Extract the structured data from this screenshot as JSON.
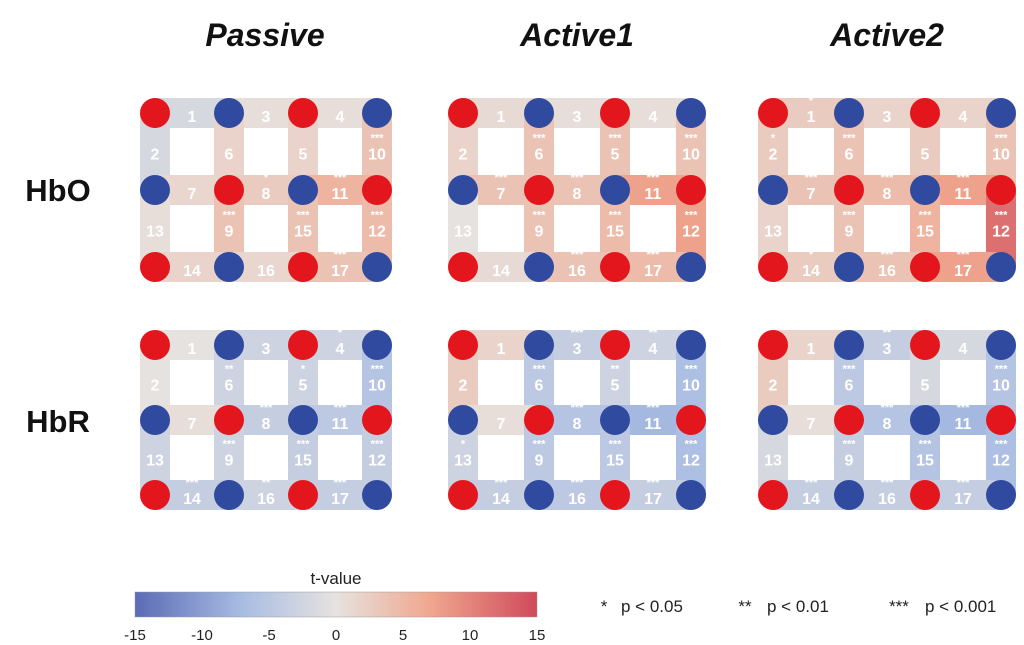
{
  "columns": [
    "Passive",
    "Active1",
    "Active2"
  ],
  "rows": [
    "HbO",
    "HbR"
  ],
  "optode_layout": [
    [
      "source",
      "detector",
      "source",
      "detector"
    ],
    [
      "detector",
      "source",
      "detector",
      "source"
    ],
    [
      "source",
      "detector",
      "source",
      "detector"
    ]
  ],
  "colors": {
    "source": "#e3161d",
    "detector": "#2f4a9e",
    "cmap": [
      "#5b6bb5",
      "#a9bde3",
      "#e6e2df",
      "#f0a890",
      "#cf4a5b"
    ]
  },
  "channels": {
    "HbO": {
      "Passive": [
        {
          "id": 1,
          "t": -2,
          "sig": ""
        },
        {
          "id": 2,
          "t": -2,
          "sig": ""
        },
        {
          "id": 3,
          "t": 0.5,
          "sig": ""
        },
        {
          "id": 4,
          "t": 0.5,
          "sig": ""
        },
        {
          "id": 5,
          "t": 2,
          "sig": ""
        },
        {
          "id": 6,
          "t": 2,
          "sig": ""
        },
        {
          "id": 7,
          "t": 1.5,
          "sig": ""
        },
        {
          "id": 8,
          "t": 3,
          "sig": "*"
        },
        {
          "id": 9,
          "t": 4,
          "sig": "***"
        },
        {
          "id": 10,
          "t": 4,
          "sig": "***"
        },
        {
          "id": 11,
          "t": 6,
          "sig": "***"
        },
        {
          "id": 12,
          "t": 5,
          "sig": "***"
        },
        {
          "id": 13,
          "t": 0.5,
          "sig": ""
        },
        {
          "id": 14,
          "t": 2,
          "sig": ""
        },
        {
          "id": 15,
          "t": 4,
          "sig": "***"
        },
        {
          "id": 16,
          "t": 1.5,
          "sig": ""
        },
        {
          "id": 17,
          "t": 4,
          "sig": "***"
        }
      ],
      "Active1": [
        {
          "id": 1,
          "t": 1,
          "sig": ""
        },
        {
          "id": 2,
          "t": 2,
          "sig": ""
        },
        {
          "id": 3,
          "t": 0.5,
          "sig": ""
        },
        {
          "id": 4,
          "t": 0.5,
          "sig": ""
        },
        {
          "id": 5,
          "t": 4,
          "sig": "***"
        },
        {
          "id": 6,
          "t": 4,
          "sig": "***"
        },
        {
          "id": 7,
          "t": 4,
          "sig": "***"
        },
        {
          "id": 8,
          "t": 4,
          "sig": "***"
        },
        {
          "id": 9,
          "t": 4,
          "sig": "***"
        },
        {
          "id": 10,
          "t": 4,
          "sig": "***"
        },
        {
          "id": 11,
          "t": 8,
          "sig": "***"
        },
        {
          "id": 12,
          "t": 8,
          "sig": "***"
        },
        {
          "id": 13,
          "t": 0,
          "sig": ""
        },
        {
          "id": 14,
          "t": 1,
          "sig": ""
        },
        {
          "id": 15,
          "t": 5,
          "sig": "***"
        },
        {
          "id": 16,
          "t": 4,
          "sig": "***"
        },
        {
          "id": 17,
          "t": 5,
          "sig": "***"
        }
      ],
      "Active2": [
        {
          "id": 1,
          "t": 3,
          "sig": "*"
        },
        {
          "id": 2,
          "t": 3,
          "sig": "*"
        },
        {
          "id": 3,
          "t": 2,
          "sig": ""
        },
        {
          "id": 4,
          "t": 2,
          "sig": ""
        },
        {
          "id": 5,
          "t": 3,
          "sig": ""
        },
        {
          "id": 6,
          "t": 4,
          "sig": "***"
        },
        {
          "id": 7,
          "t": 4,
          "sig": "***"
        },
        {
          "id": 8,
          "t": 5,
          "sig": "***"
        },
        {
          "id": 9,
          "t": 4,
          "sig": "***"
        },
        {
          "id": 10,
          "t": 4,
          "sig": "***"
        },
        {
          "id": 11,
          "t": 8,
          "sig": "***"
        },
        {
          "id": 12,
          "t": 12,
          "sig": "***"
        },
        {
          "id": 13,
          "t": 2,
          "sig": ""
        },
        {
          "id": 14,
          "t": 3,
          "sig": "*"
        },
        {
          "id": 15,
          "t": 6,
          "sig": "***"
        },
        {
          "id": 16,
          "t": 4,
          "sig": "***"
        },
        {
          "id": 17,
          "t": 8,
          "sig": "***"
        }
      ]
    },
    "HbR": {
      "Passive": [
        {
          "id": 1,
          "t": 0,
          "sig": ""
        },
        {
          "id": 2,
          "t": 0,
          "sig": ""
        },
        {
          "id": 3,
          "t": -3,
          "sig": ""
        },
        {
          "id": 4,
          "t": -3,
          "sig": "*"
        },
        {
          "id": 5,
          "t": -3,
          "sig": "*"
        },
        {
          "id": 6,
          "t": -3,
          "sig": "**"
        },
        {
          "id": 7,
          "t": 0.5,
          "sig": ""
        },
        {
          "id": 8,
          "t": -4,
          "sig": "***"
        },
        {
          "id": 9,
          "t": -3,
          "sig": "***"
        },
        {
          "id": 10,
          "t": -6,
          "sig": "***"
        },
        {
          "id": 11,
          "t": -5,
          "sig": "***"
        },
        {
          "id": 12,
          "t": -4,
          "sig": "***"
        },
        {
          "id": 13,
          "t": -3,
          "sig": ""
        },
        {
          "id": 14,
          "t": -4,
          "sig": "***"
        },
        {
          "id": 15,
          "t": -4,
          "sig": "***"
        },
        {
          "id": 16,
          "t": -3,
          "sig": "**"
        },
        {
          "id": 17,
          "t": -4,
          "sig": "***"
        }
      ],
      "Active1": [
        {
          "id": 1,
          "t": 2,
          "sig": ""
        },
        {
          "id": 2,
          "t": 3,
          "sig": ""
        },
        {
          "id": 3,
          "t": -4,
          "sig": "***"
        },
        {
          "id": 4,
          "t": -3,
          "sig": "**"
        },
        {
          "id": 5,
          "t": -3,
          "sig": "**"
        },
        {
          "id": 6,
          "t": -5,
          "sig": "***"
        },
        {
          "id": 7,
          "t": 0.5,
          "sig": ""
        },
        {
          "id": 8,
          "t": -6,
          "sig": "***"
        },
        {
          "id": 9,
          "t": -5,
          "sig": "***"
        },
        {
          "id": 10,
          "t": -7,
          "sig": "***"
        },
        {
          "id": 11,
          "t": -8,
          "sig": "***"
        },
        {
          "id": 12,
          "t": -7,
          "sig": "***"
        },
        {
          "id": 13,
          "t": -3,
          "sig": "*"
        },
        {
          "id": 14,
          "t": -4,
          "sig": "***"
        },
        {
          "id": 15,
          "t": -5,
          "sig": "***"
        },
        {
          "id": 16,
          "t": -5,
          "sig": "***"
        },
        {
          "id": 17,
          "t": -4,
          "sig": "***"
        }
      ],
      "Active2": [
        {
          "id": 1,
          "t": 2,
          "sig": ""
        },
        {
          "id": 2,
          "t": 3,
          "sig": ""
        },
        {
          "id": 3,
          "t": -4,
          "sig": "**"
        },
        {
          "id": 4,
          "t": -2,
          "sig": ""
        },
        {
          "id": 5,
          "t": -2,
          "sig": ""
        },
        {
          "id": 6,
          "t": -5,
          "sig": "***"
        },
        {
          "id": 7,
          "t": 0.5,
          "sig": ""
        },
        {
          "id": 8,
          "t": -6,
          "sig": "***"
        },
        {
          "id": 9,
          "t": -4,
          "sig": "***"
        },
        {
          "id": 10,
          "t": -6,
          "sig": "***"
        },
        {
          "id": 11,
          "t": -8,
          "sig": "***"
        },
        {
          "id": 12,
          "t": -7,
          "sig": "***"
        },
        {
          "id": 13,
          "t": -2,
          "sig": ""
        },
        {
          "id": 14,
          "t": -4,
          "sig": "***"
        },
        {
          "id": 15,
          "t": -6,
          "sig": "***"
        },
        {
          "id": 16,
          "t": -4,
          "sig": "***"
        },
        {
          "id": 17,
          "t": -4,
          "sig": "***"
        }
      ]
    }
  },
  "colorbar": {
    "title": "t-value",
    "range": [
      -15,
      15
    ],
    "ticks": [
      "-15",
      "-10",
      "-5",
      "0",
      "5",
      "10",
      "15"
    ]
  },
  "legend": [
    {
      "stars": "*",
      "label": "p < 0.05"
    },
    {
      "stars": "**",
      "label": "p < 0.01"
    },
    {
      "stars": "***",
      "label": "p < 0.001"
    }
  ]
}
